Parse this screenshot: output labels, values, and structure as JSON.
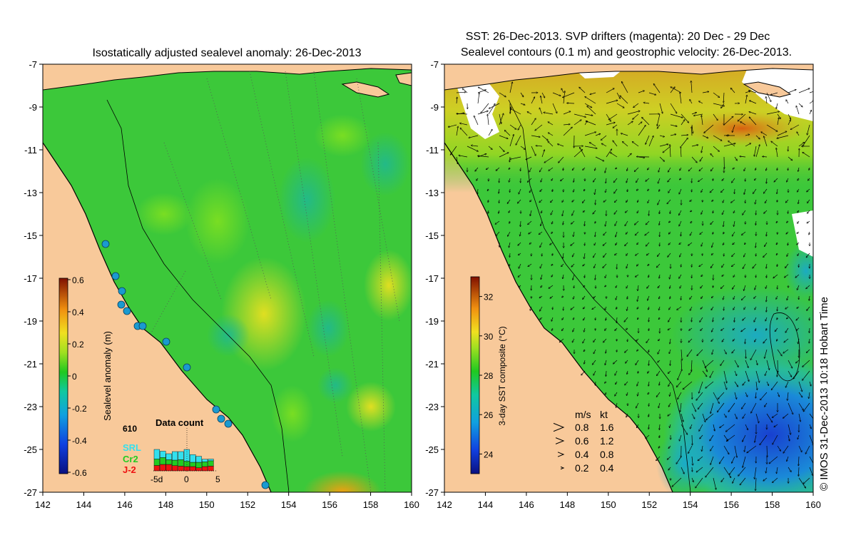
{
  "left_panel": {
    "title": "Isostatically adjusted sealevel anomaly: 26-Dec-2013",
    "y_ticks": [
      "-7",
      "-9",
      "-11",
      "-13",
      "-15",
      "-17",
      "-19",
      "-21",
      "-23",
      "-25",
      "-27"
    ],
    "x_ticks": [
      "142",
      "144",
      "146",
      "148",
      "150",
      "152",
      "154",
      "156",
      "158",
      "160"
    ],
    "colorbar": {
      "label": "Sealevel anomaly (m)",
      "ticks": [
        "0.6",
        "0.4",
        "0.2",
        "0",
        "-0.2",
        "-0.4",
        "-0.6"
      ],
      "range": [
        -0.6,
        0.6
      ]
    },
    "data_count": {
      "title": "Data count",
      "max_label": "610",
      "legend": [
        {
          "name": "SRL",
          "color": "#33e0ee"
        },
        {
          "name": "Cr2",
          "color": "#22cc22"
        },
        {
          "name": "J-2",
          "color": "#ee1111"
        }
      ],
      "x_ticks": [
        "-5d",
        "0",
        "5"
      ],
      "days": [
        -5,
        -4,
        -3,
        -2,
        -1,
        0,
        1,
        2,
        3,
        4
      ],
      "srl": [
        0.45,
        0.3,
        0.28,
        0.4,
        0.38,
        0.55,
        0.36,
        0.28,
        0.12,
        0.08
      ],
      "cr2": [
        0.3,
        0.32,
        0.22,
        0.26,
        0.3,
        0.25,
        0.2,
        0.26,
        0.22,
        0.25
      ],
      "j2": [
        0.25,
        0.3,
        0.3,
        0.24,
        0.22,
        0.2,
        0.2,
        0.14,
        0.2,
        0.22
      ]
    }
  },
  "right_panel": {
    "title_line1": "SST: 26-Dec-2013. SVP drifters (magenta): 20 Dec - 29 Dec",
    "title_line2": "Sealevel contours (0.1 m) and geostrophic velocity: 26-Dec-2013.",
    "y_ticks": [
      "-7",
      "-9",
      "-11",
      "-13",
      "-15",
      "-17",
      "-19",
      "-21",
      "-23",
      "-25",
      "-27"
    ],
    "x_ticks": [
      "142",
      "144",
      "146",
      "148",
      "150",
      "152",
      "154",
      "156",
      "158",
      "160"
    ],
    "colorbar": {
      "label": "3-day SST composite (°C)",
      "ticks": [
        "32",
        "30",
        "28",
        "26",
        "24"
      ],
      "range": [
        23,
        33
      ]
    },
    "velocity_legend": {
      "header_ms": "m/s",
      "header_kt": "kt",
      "rows": [
        {
          "ms": "0.8",
          "kt": "1.6"
        },
        {
          "ms": "0.6",
          "kt": "1.2"
        },
        {
          "ms": "0.4",
          "kt": "0.8"
        },
        {
          "ms": "0.2",
          "kt": "0.4"
        }
      ]
    },
    "credit": "© IMOS 31-Dec-2013 10:18 Hobart Time"
  },
  "colors": {
    "land": "#f8c99a",
    "ocean_mid": "#22cc33",
    "warm": "#f0d020",
    "cool": "#1a9ad0",
    "deep": "#1030c0"
  },
  "map_extent": {
    "lon": [
      142,
      160
    ],
    "lat": [
      -27,
      -7
    ]
  }
}
